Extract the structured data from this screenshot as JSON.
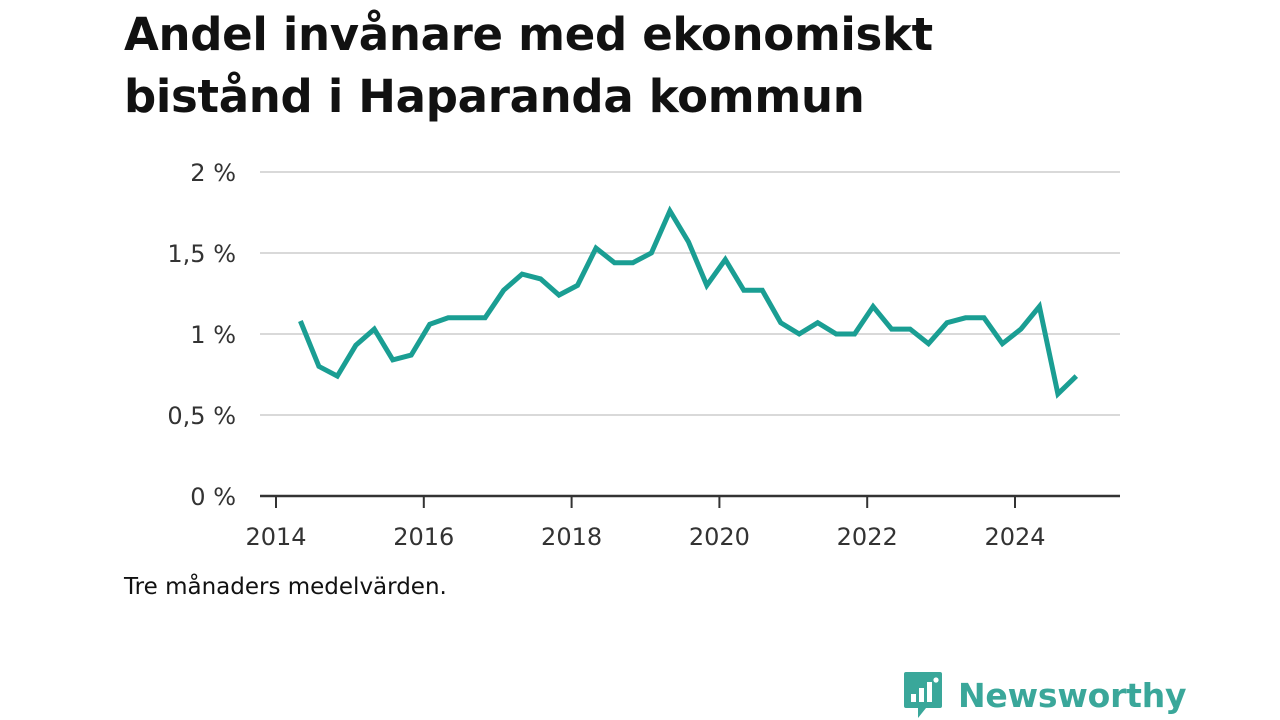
{
  "title": "Andel invånare med ekonomiskt bistånd i Haparanda kommun",
  "note": "Tre månaders medelvärden.",
  "brand": {
    "name": "Newsworthy",
    "logo_icon": "bar-chart-speech-bubble-icon",
    "color": "#3aa79a"
  },
  "chart_data": {
    "type": "line",
    "title": "Andel invånare med ekonomiskt bistånd i Haparanda kommun",
    "xlabel": "",
    "ylabel": "",
    "xlim": [
      2013.9,
      2025.4
    ],
    "ylim": [
      0,
      2
    ],
    "x_ticks": [
      2014,
      2016,
      2018,
      2020,
      2022,
      2024
    ],
    "x_tick_labels": [
      "2014",
      "2016",
      "2018",
      "2020",
      "2022",
      "2024"
    ],
    "y_ticks": [
      0,
      0.5,
      1,
      1.5,
      2
    ],
    "y_tick_labels": [
      "0 %",
      "0,5 %",
      "1 %",
      "1,5 %",
      "2 %"
    ],
    "grid": true,
    "line_color": "#1a9e93",
    "series": [
      {
        "x": [
          2014.33,
          2014.58,
          2014.83,
          2015.08,
          2015.33,
          2015.58,
          2015.83,
          2016.08,
          2016.33,
          2016.58,
          2016.83,
          2017.08,
          2017.33,
          2017.58,
          2017.83,
          2018.08,
          2018.33,
          2018.58,
          2018.83,
          2019.08,
          2019.33,
          2019.58,
          2019.83,
          2020.08,
          2020.33,
          2020.58,
          2020.83,
          2021.08,
          2021.33,
          2021.58,
          2021.83,
          2022.08,
          2022.33,
          2022.58,
          2022.83,
          2023.08,
          2023.33,
          2023.58,
          2023.83,
          2024.08,
          2024.33,
          2024.58,
          2024.83
        ],
        "values": [
          1.08,
          0.8,
          0.74,
          0.93,
          1.03,
          0.84,
          0.87,
          1.06,
          1.1,
          1.1,
          1.1,
          1.27,
          1.37,
          1.34,
          1.24,
          1.3,
          1.53,
          1.44,
          1.44,
          1.5,
          1.76,
          1.57,
          1.3,
          1.46,
          1.27,
          1.27,
          1.07,
          1.0,
          1.07,
          1.0,
          1.0,
          1.17,
          1.03,
          1.03,
          0.94,
          1.07,
          1.1,
          1.1,
          0.94,
          1.03,
          1.17,
          0.63,
          0.74
        ]
      }
    ]
  }
}
